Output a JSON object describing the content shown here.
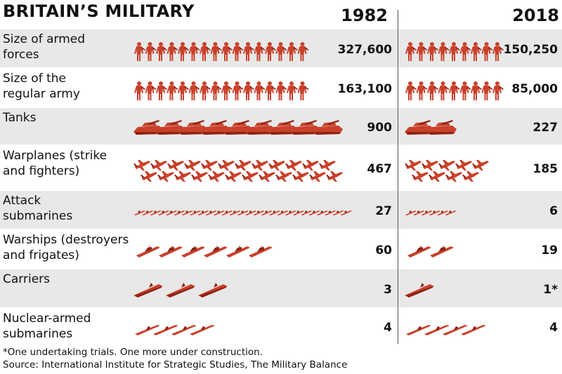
{
  "header": {
    "title": "BRITAIN’S MILITARY",
    "year_1982": "1982",
    "year_2018": "2018"
  },
  "colors": {
    "icon_fill": "#c9412b",
    "icon_dark": "#8f2414",
    "row_shade": "#e8e8e8",
    "divider": "#555555"
  },
  "chart_data": {
    "type": "table",
    "title": "BRITAIN’S MILITARY",
    "columns": [
      "1982",
      "2018"
    ],
    "rows": [
      {
        "label": "Size of armed\nforces",
        "icon": "soldier-icon",
        "value_1982": "327,600",
        "value_2018": "150,250",
        "icons_1982": 16,
        "icons_2018": 9
      },
      {
        "label": "Size of the\nregular army",
        "icon": "soldier-icon",
        "value_1982": "163,100",
        "value_2018": "85,000",
        "icons_1982": 16,
        "icons_2018": 9
      },
      {
        "label": "Tanks",
        "icon": "tank-icon",
        "value_1982": "900",
        "value_2018": "227",
        "icons_1982": 9,
        "icons_2018": 2
      },
      {
        "label": "Warplanes (strike\nand fighters)",
        "icon": "warplane-icon",
        "value_1982": "467",
        "value_2018": "185",
        "icons_1982": 24,
        "icons_2018": 9
      },
      {
        "label": "Attack\nsubmarines",
        "icon": "submarine-icon",
        "value_1982": "27",
        "value_2018": "6",
        "icons_1982": 27,
        "icons_2018": 6
      },
      {
        "label": "Warships (destroyers\nand frigates)",
        "icon": "warship-icon",
        "value_1982": "60",
        "value_2018": "19",
        "icons_1982": 6,
        "icons_2018": 2
      },
      {
        "label": "Carriers",
        "icon": "carrier-icon",
        "value_1982": "3",
        "value_2018": "1*",
        "icons_1982": 3,
        "icons_2018": 1
      },
      {
        "label": "Nuclear-armed\nsubmarines",
        "icon": "missile-submarine-icon",
        "value_1982": "4",
        "value_2018": "4",
        "icons_1982": 4,
        "icons_2018": 4
      }
    ]
  },
  "footnote": "*One undertaking trials. One more under construction.",
  "source": "Source: International Institute for Strategic Studies, The Military Balance"
}
